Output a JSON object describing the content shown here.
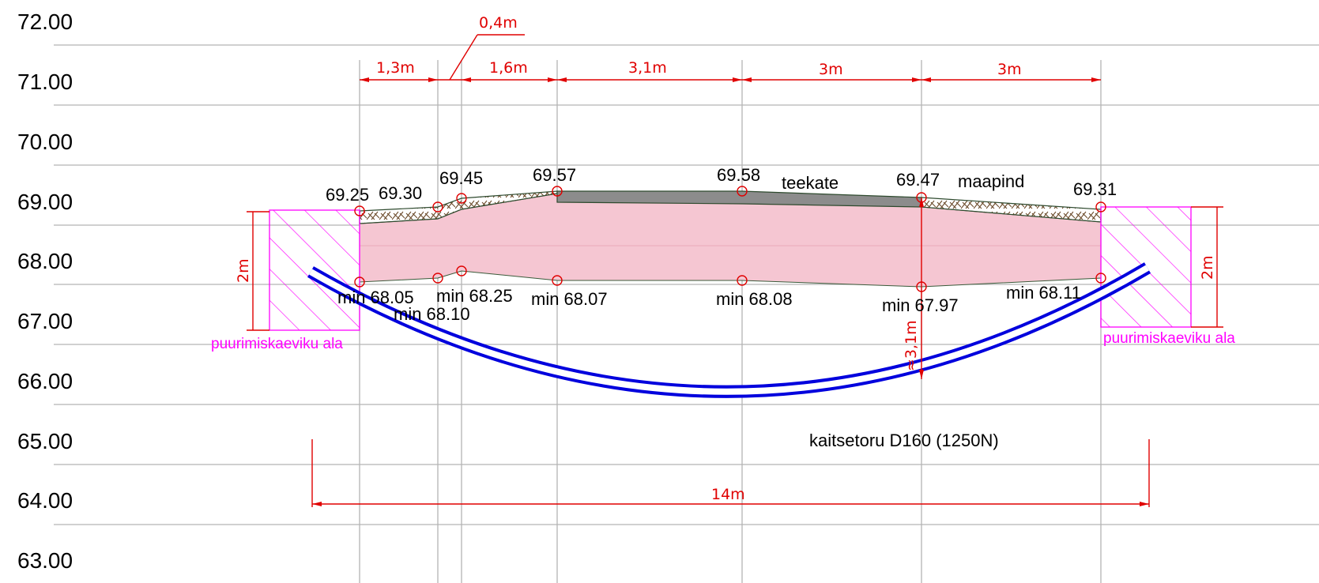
{
  "elevation_axis": [
    "72.00",
    "71.00",
    "70.00",
    "69.00",
    "68.00",
    "67.00",
    "66.00",
    "65.00",
    "64.00",
    "63.00"
  ],
  "top_dimensions": [
    "1,3m",
    "0,4m",
    "1,6m",
    "3,1m",
    "3m",
    "3m"
  ],
  "surface_levels": [
    "69.25",
    "69.30",
    "69.45",
    "69.57",
    "69.58",
    "69.47",
    "69.31"
  ],
  "min_levels": [
    "min 68.05",
    "min 68.10",
    "min 68.25",
    "min 68.07",
    "min 68.08",
    "min 67.97",
    "min 68.11"
  ],
  "labels": {
    "road_surface": "teekate",
    "ground": "maapind",
    "pit_left": "puurimiskaeviku ala",
    "pit_right": "puurimiskaeviku ala",
    "pipe": "kaitsetoru D160 (1250N)",
    "depth_dim": "≈3,1m",
    "pit_depth_left": "2m",
    "pit_depth_right": "2m",
    "total_length": "14m"
  },
  "colors": {
    "grid": "#b4b4b4",
    "dimension": "#e00000",
    "pit_hatch": "#ff00ff",
    "pipe": "#0000dd",
    "fill_zone": "#f5c6d2",
    "asphalt": "#8c8c8c"
  }
}
